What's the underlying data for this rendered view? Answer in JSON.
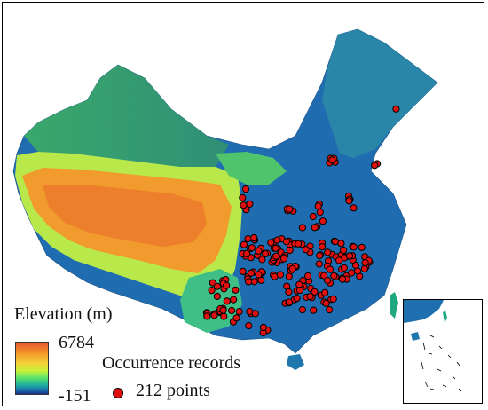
{
  "legend": {
    "elevation_title": "Elevation (m)",
    "elevation_max": "6784",
    "elevation_min": "-151",
    "occurrence_title": "Occurrence records",
    "occurrence_count_label": "212 points"
  },
  "colors": {
    "high": "#e8582d",
    "upper": "#f49a2c",
    "mid_high": "#f2d23a",
    "mid": "#5fe36a",
    "low_mid": "#1fb39b",
    "low": "#1b6fae",
    "lowest": "#1a2f8a",
    "point_fill": "#e01010"
  },
  "occurrence_points_count": 212
}
